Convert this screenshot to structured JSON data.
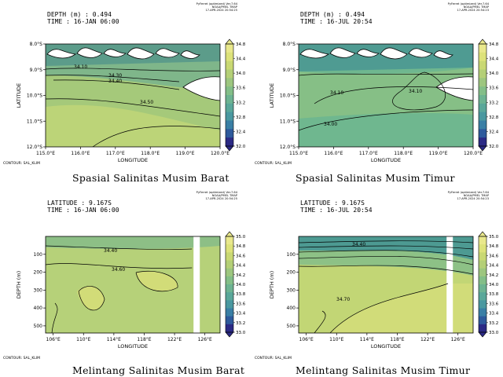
{
  "colorbar": {
    "colors": [
      "#2b2a85",
      "#2e5a9c",
      "#3a7fa5",
      "#4a98a0",
      "#5aa79a",
      "#6db392",
      "#83be88",
      "#9dc67f",
      "#b4cf77",
      "#c9d873",
      "#dde27a",
      "#e9e88c"
    ]
  },
  "chart_data": [
    {
      "type": "heatmap",
      "header_line1": "DEPTH (m) : 0.494",
      "header_line2": "TIME : 16-JAN 06:00",
      "meta": [
        "PyFerret (optimized) Ver.7.64",
        "NOAA/PMEL TMAP",
        "17-APR-2024 20:54:25"
      ],
      "xlabel": "LONGITUDE",
      "ylabel": "LATITUDE",
      "xticks": [
        "115.0°E",
        "116.0°E",
        "117.0°E",
        "118.0°E",
        "119.0°E",
        "120.0°E"
      ],
      "yticks": [
        "8.0°S",
        "9.0°S",
        "10.0°S",
        "11.0°S",
        "12.0°S"
      ],
      "xlim": [
        115,
        120
      ],
      "ylim": [
        -12,
        -8
      ],
      "colorbar_levels": [
        "34.8",
        "34.4",
        "34.0",
        "33.6",
        "33.2",
        "32.8",
        "32.4",
        "32.0"
      ],
      "contour_labels": [
        "34.10",
        "34.30",
        "34.40",
        "34.50"
      ],
      "contour_note": "CONTOUR: SAL_KLIM",
      "caption": "Spasial Salinitas Musim Barat"
    },
    {
      "type": "heatmap",
      "header_line1": "DEPTH (m) : 0.494",
      "header_line2": "TIME : 16-JUL 20:54",
      "meta": [
        "PyFerret (optimized) Ver.7.64",
        "NOAA/PMEL TMAP",
        "17-APR-2024 20:54:23"
      ],
      "xlabel": "LONGITUDE",
      "ylabel": "LATITUDE",
      "xticks": [
        "115.0°E",
        "116.0°E",
        "117.0°E",
        "118.0°E",
        "119.0°E",
        "120.0°E"
      ],
      "yticks": [
        "8.0°S",
        "9.0°S",
        "10.0°S",
        "11.0°S",
        "12.0°S"
      ],
      "xlim": [
        115,
        120
      ],
      "ylim": [
        -12,
        -8
      ],
      "colorbar_levels": [
        "34.8",
        "34.4",
        "34.0",
        "33.6",
        "33.2",
        "32.8",
        "32.4",
        "32.0"
      ],
      "contour_labels": [
        "34.10",
        "34.10",
        "34.00"
      ],
      "contour_note": "CONTOUR: SAL_KLIM",
      "caption": "Spasial Salinitas Musim Timur"
    },
    {
      "type": "heatmap",
      "header_line1": "LATITUDE : 9.167S",
      "header_line2": "TIME : 16-JAN 06:00",
      "meta": [
        "PyFerret (optimized) Ver.7.64",
        "NOAA/PMEL TMAP",
        "17-APR-2024 20:54:25"
      ],
      "xlabel": "LONGITUDE",
      "ylabel": "DEPTH (m)",
      "xticks": [
        "106°E",
        "110°E",
        "114°E",
        "118°E",
        "122°E",
        "126°E"
      ],
      "yticks": [
        "100",
        "200",
        "300",
        "400",
        "500"
      ],
      "xlim": [
        105,
        128
      ],
      "ylim": [
        540,
        0
      ],
      "colorbar_levels": [
        "35.0",
        "34.8",
        "34.6",
        "34.4",
        "34.2",
        "34.0",
        "33.8",
        "33.6",
        "33.4",
        "33.2",
        "33.0"
      ],
      "contour_labels": [
        "34.40",
        "34.60"
      ],
      "contour_note": "CONTOUR: SAL_KLIM",
      "caption": "Melintang Salinitas Musim Barat"
    },
    {
      "type": "heatmap",
      "header_line1": "LATITUDE : 9.167S",
      "header_line2": "TIME : 16-JUL 20:54",
      "meta": [
        "PyFerret (optimized) Ver.7.64",
        "NOAA/PMEL TMAP",
        "17-APR-2024 20:54:23"
      ],
      "xlabel": "LONGITUDE",
      "ylabel": "DEPTH (m)",
      "xticks": [
        "106°E",
        "110°E",
        "114°E",
        "118°E",
        "122°E",
        "126°E"
      ],
      "yticks": [
        "100",
        "200",
        "300",
        "400",
        "500"
      ],
      "xlim": [
        105,
        128
      ],
      "ylim": [
        540,
        0
      ],
      "colorbar_levels": [
        "35.0",
        "34.8",
        "34.6",
        "34.4",
        "34.2",
        "34.0",
        "33.8",
        "33.6",
        "33.4",
        "33.2",
        "33.0"
      ],
      "contour_labels": [
        "34.40",
        "34.70"
      ],
      "contour_note": "CONTOUR: SAL_KLIM",
      "caption": "Melintang Salinitas Musim Timur"
    }
  ]
}
